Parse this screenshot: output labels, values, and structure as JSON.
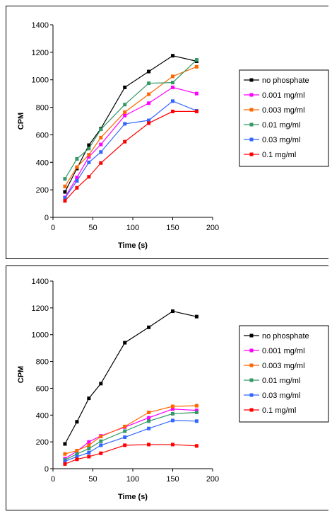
{
  "chart_data": [
    {
      "type": "line",
      "title": "",
      "xlabel": "Time (s)",
      "ylabel": "CPM",
      "xlim": [
        0,
        200
      ],
      "ylim": [
        0,
        1400
      ],
      "xticks": [
        0,
        50,
        100,
        150,
        200
      ],
      "yticks": [
        0,
        200,
        400,
        600,
        800,
        1000,
        1200,
        1400
      ],
      "grid": false,
      "legend_position": "right",
      "x": [
        15,
        30,
        45,
        60,
        90,
        120,
        150,
        180
      ],
      "series": [
        {
          "name": "no phosphate",
          "color": "#000000",
          "values": [
            185,
            355,
            525,
            645,
            945,
            1060,
            1175,
            1135
          ]
        },
        {
          "name": "0.001 mg/ml",
          "color": "#ff00ff",
          "values": [
            145,
            290,
            440,
            530,
            740,
            830,
            945,
            900
          ]
        },
        {
          "name": "0.003 mg/ml",
          "color": "#ff6600",
          "values": [
            225,
            365,
            455,
            580,
            765,
            895,
            1025,
            1095
          ]
        },
        {
          "name": "0.01 mg/ml",
          "color": "#339966",
          "values": [
            280,
            425,
            500,
            640,
            820,
            975,
            980,
            1145
          ]
        },
        {
          "name": "0.03 mg/ml",
          "color": "#3366ff",
          "values": [
            140,
            265,
            400,
            475,
            680,
            705,
            845,
            775
          ]
        },
        {
          "name": "0.1 mg/ml",
          "color": "#ff0000",
          "values": [
            120,
            215,
            295,
            395,
            550,
            685,
            770,
            770
          ]
        }
      ]
    },
    {
      "type": "line",
      "title": "",
      "xlabel": "Time (s)",
      "ylabel": "CPM",
      "xlim": [
        0,
        200
      ],
      "ylim": [
        0,
        1400
      ],
      "xticks": [
        0,
        50,
        100,
        150,
        200
      ],
      "yticks": [
        0,
        200,
        400,
        600,
        800,
        1000,
        1200,
        1400
      ],
      "grid": false,
      "legend_position": "right",
      "x": [
        15,
        30,
        45,
        60,
        90,
        120,
        150,
        180
      ],
      "series": [
        {
          "name": "no phosphate",
          "color": "#000000",
          "values": [
            185,
            350,
            525,
            635,
            940,
            1055,
            1175,
            1135
          ]
        },
        {
          "name": "0.001 mg/ml",
          "color": "#ff00ff",
          "values": [
            75,
            130,
            200,
            245,
            310,
            380,
            445,
            435
          ]
        },
        {
          "name": "0.003 mg/ml",
          "color": "#ff6600",
          "values": [
            110,
            135,
            175,
            240,
            315,
            420,
            465,
            470
          ]
        },
        {
          "name": "0.01 mg/ml",
          "color": "#339966",
          "values": [
            65,
            110,
            150,
            205,
            280,
            355,
            410,
            420
          ]
        },
        {
          "name": "0.03 mg/ml",
          "color": "#3366ff",
          "values": [
            55,
            90,
            120,
            175,
            235,
            300,
            360,
            355
          ]
        },
        {
          "name": "0.1 mg/ml",
          "color": "#ff0000",
          "values": [
            35,
            70,
            90,
            115,
            175,
            180,
            180,
            170
          ]
        }
      ]
    }
  ]
}
